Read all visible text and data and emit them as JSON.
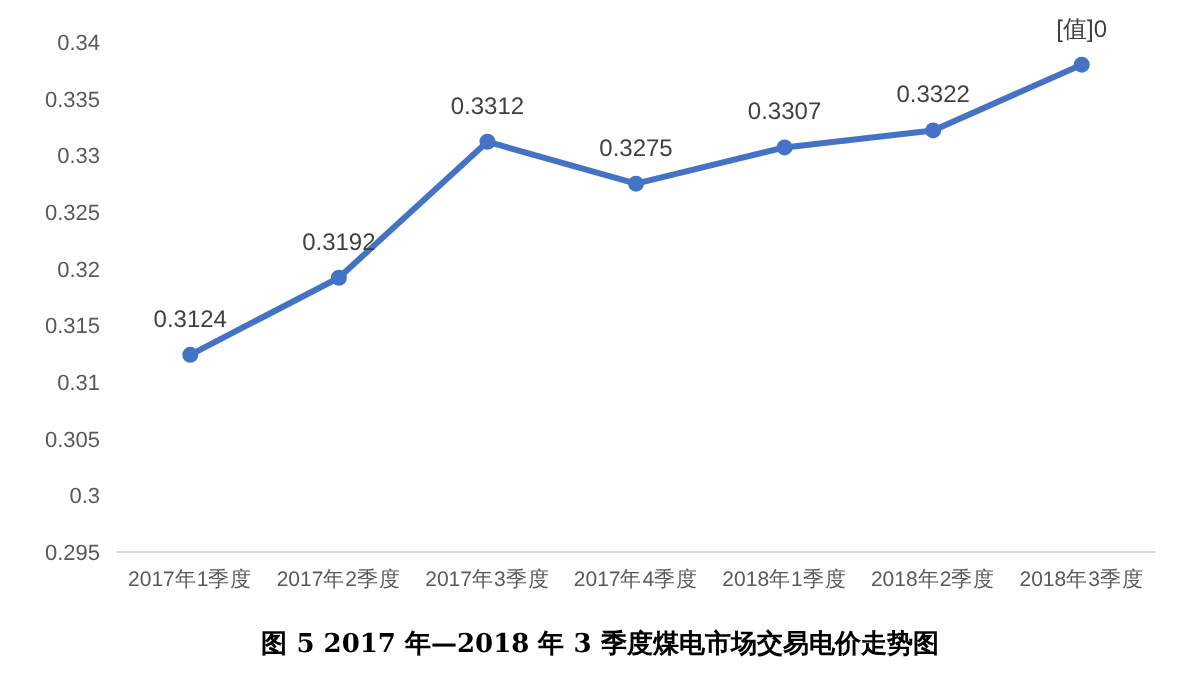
{
  "chart_data": {
    "type": "line",
    "title": "图 5 2017 年—2018 年 3 季度煤电市场交易电价走势图",
    "categories": [
      "2017年1季度",
      "2017年2季度",
      "2017年3季度",
      "2017年4季度",
      "2018年1季度",
      "2018年2季度",
      "2018年3季度"
    ],
    "series": [
      {
        "color": "#4472c4",
        "values": [
          0.3124,
          0.3192,
          0.3312,
          0.3275,
          0.3307,
          0.3322,
          0.338
        ],
        "value_labels": [
          "0.3124",
          "0.3192",
          "0.3312",
          "0.3275",
          "0.3307",
          "0.3322",
          "[值]0"
        ]
      }
    ],
    "ylim": [
      0.295,
      0.34
    ],
    "yticks": [
      0.295,
      0.3,
      0.305,
      0.31,
      0.315,
      0.32,
      0.325,
      0.33,
      0.335,
      0.34
    ],
    "grid": false,
    "marker": "circle",
    "line_style": "solid"
  }
}
